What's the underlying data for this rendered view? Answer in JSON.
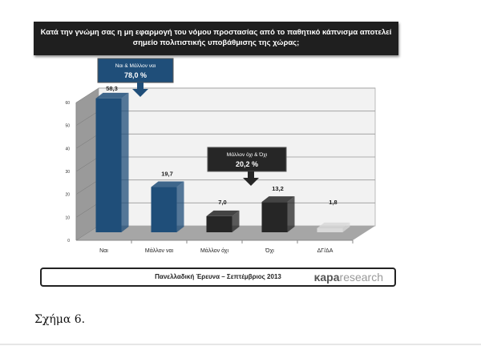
{
  "chart_data": {
    "type": "bar",
    "title": "Κατά την γνώμη σας η μη εφαρμογή του νόμου προστασίας από το παθητικό κάπνισμα αποτελεί σημείο πολιτιστικής υποβάθμισης της χώρας;",
    "title_line1": "Κατά την γνώμη σας η μη εφαρμογή του νόμου προστασίας από το παθητικό κάπνισμα αποτελεί",
    "title_line2": "σημείο πολιτιστικής  υποβάθμισης  της  χώρας;",
    "categories": [
      "Ναι",
      "Μάλλον ναι",
      "Μάλλον όχι",
      "Όχι",
      "ΔΓ/ΔΑ"
    ],
    "values": [
      58.3,
      19.7,
      7.0,
      13.2,
      1.8
    ],
    "value_labels": [
      "58,3",
      "19,7",
      "7,0",
      "13,2",
      "1,8"
    ],
    "colors": [
      "#1f4e79",
      "#1f4e79",
      "#262626",
      "#262626",
      "#d9d9d9"
    ],
    "ylim": [
      0,
      60
    ],
    "yticks": [
      0,
      10,
      20,
      30,
      40,
      50,
      60
    ],
    "grid": true,
    "annotations": [
      {
        "label": "Ναι & Μάλλον ναι",
        "value": "78,0 %",
        "color": "#1f4e79"
      },
      {
        "label": "Μάλλον όχι & Όχι",
        "value": "20,2 %",
        "color": "#262626"
      }
    ]
  },
  "footer": {
    "text": "Πανελλαδική Έρευνα – Σεπτέμβριος 2013",
    "logo_bold": "κapa",
    "logo_rest": "research"
  },
  "caption": "Σχήμα 6."
}
